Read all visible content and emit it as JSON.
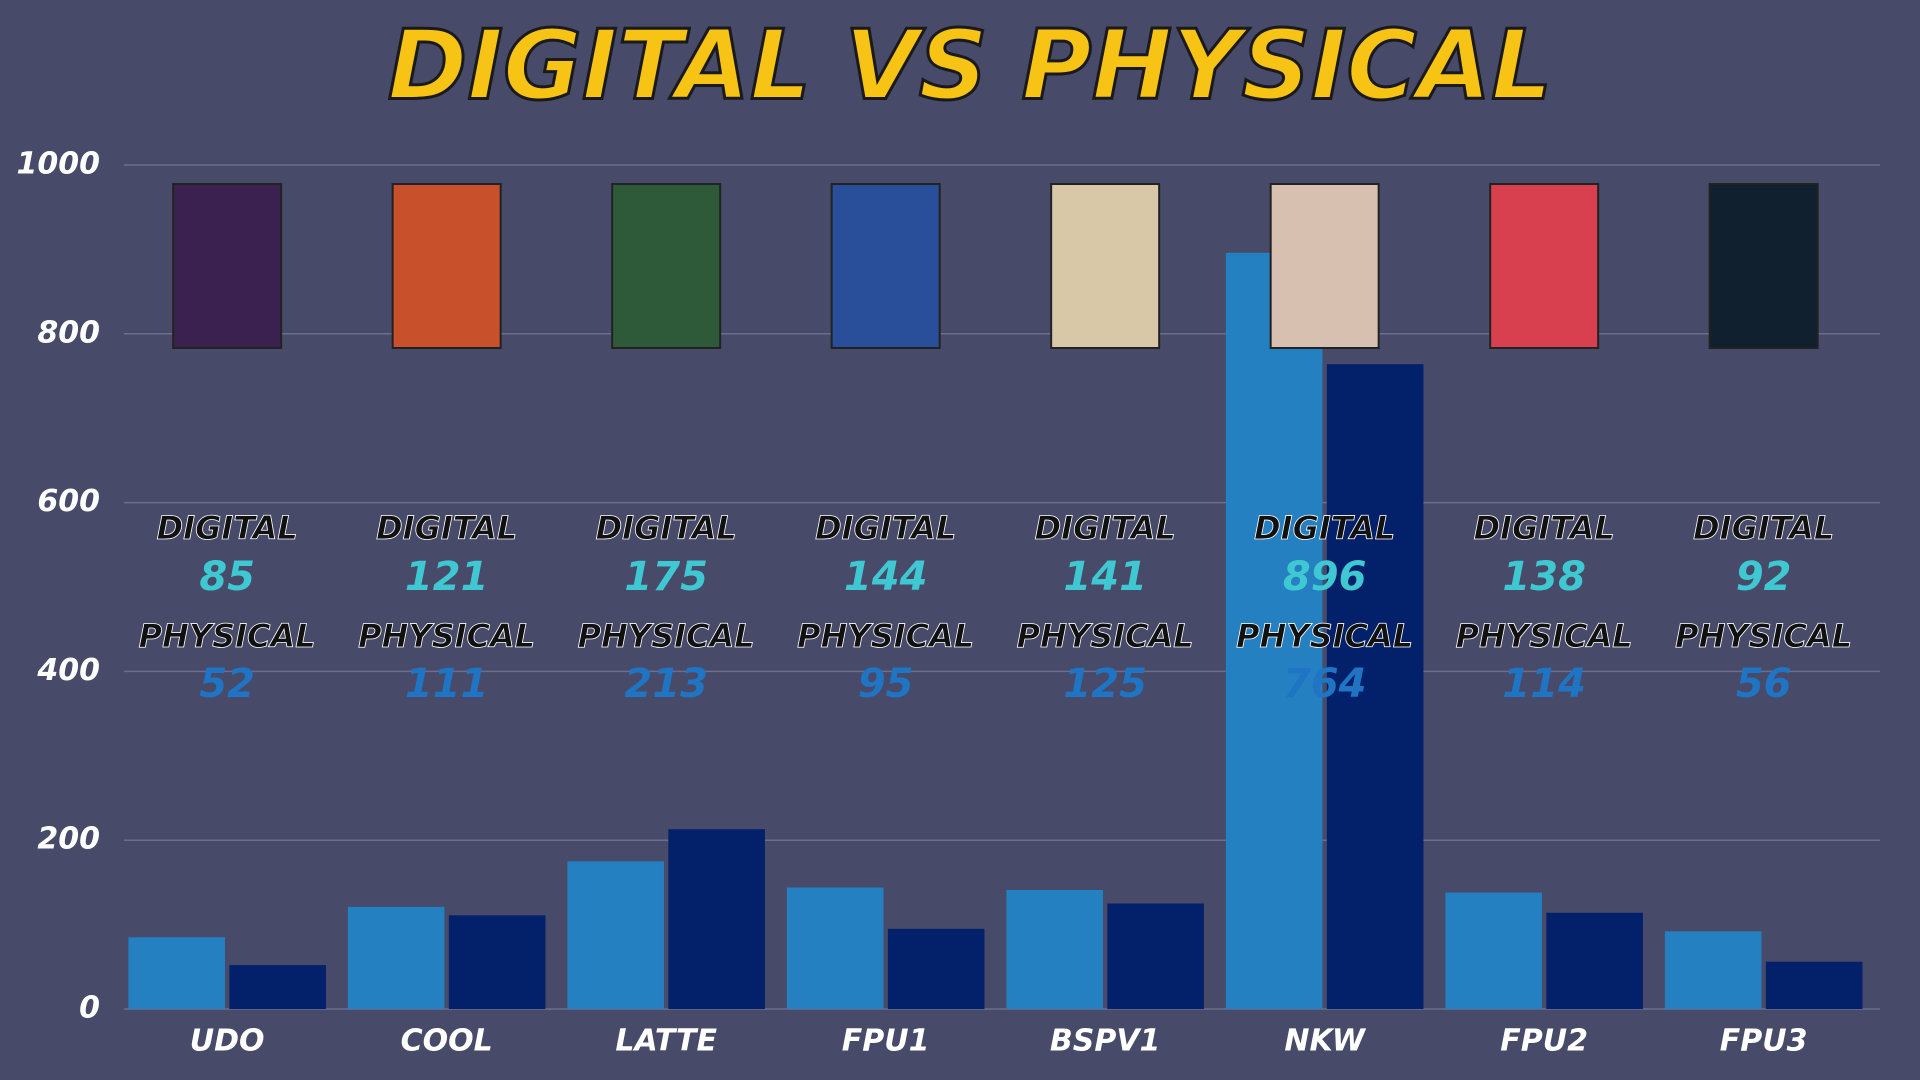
{
  "chart_data": {
    "type": "bar",
    "title": "DIGITAL VS PHYSICAL",
    "categories": [
      "UDO",
      "COOL",
      "LATTE",
      "FPU1",
      "BSPV1",
      "NKW",
      "FPU2",
      "FPU3"
    ],
    "series": [
      {
        "name": "DIGITAL",
        "color": "#2480c0",
        "values": [
          85,
          121,
          175,
          144,
          141,
          896,
          138,
          92
        ]
      },
      {
        "name": "PHYSICAL",
        "color": "#03206a",
        "values": [
          52,
          111,
          213,
          95,
          125,
          764,
          114,
          56
        ]
      }
    ],
    "ylim": [
      0,
      1000
    ],
    "yticks": [
      0,
      200,
      400,
      600,
      800,
      1000
    ],
    "grid": true
  }
}
